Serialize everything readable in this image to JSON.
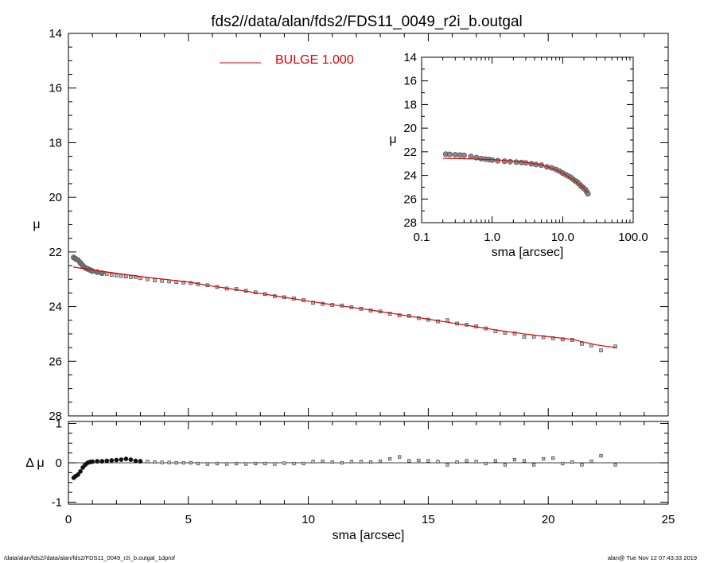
{
  "title": "fds2//data/alan/fds2/FDS11_0049_r2i_b.outgal",
  "footer_left": "/data/alan/fds2//data/alan/fds2/FDS11_0049_r2i_b.outgal_1dprof",
  "footer_right": "alan@  Tue Nov 12 07:43:33 2019",
  "colors": {
    "model": "#e00000",
    "data": "#555555",
    "axes": "#000000"
  },
  "chart_data": [
    {
      "panel": "main",
      "type": "scatter",
      "xlabel": "sma [arcsec]",
      "ylabel": "μ",
      "xlim": [
        0,
        25
      ],
      "ylim": [
        28,
        14
      ],
      "x_ticks": [
        0,
        5,
        10,
        15,
        20,
        25
      ],
      "y_ticks": [
        14,
        16,
        18,
        20,
        22,
        24,
        26,
        28
      ],
      "legend": {
        "label": "BULGE  1.000",
        "position": "top-center"
      },
      "series": [
        {
          "name": "BULGE  1.000",
          "kind": "line",
          "color": "#e00000",
          "x": [
            0.2,
            1,
            2,
            3,
            4,
            5,
            6,
            7,
            8,
            9,
            10,
            11,
            12,
            13,
            14,
            15,
            16,
            17,
            18,
            19,
            20,
            21,
            22,
            22.8
          ],
          "y": [
            22.55,
            22.66,
            22.78,
            22.9,
            23.0,
            23.1,
            23.25,
            23.38,
            23.52,
            23.66,
            23.8,
            23.93,
            24.05,
            24.18,
            24.32,
            24.46,
            24.6,
            24.74,
            24.88,
            25.0,
            25.1,
            25.2,
            25.4,
            25.5
          ]
        },
        {
          "kind": "points",
          "x": [
            0.22,
            0.3,
            0.4,
            0.5,
            0.6,
            0.7,
            0.8,
            0.9,
            1.0,
            1.2,
            1.4,
            1.6,
            1.8,
            2.0,
            2.2,
            2.4,
            2.6,
            2.8,
            3.0,
            3.3,
            3.6,
            3.9,
            4.2,
            4.5,
            4.8,
            5.1,
            5.4,
            5.8,
            6.2,
            6.6,
            7.0,
            7.4,
            7.8,
            8.2,
            8.6,
            9.0,
            9.4,
            9.8,
            10.2,
            10.6,
            11.0,
            11.4,
            11.8,
            12.2,
            12.6,
            13.0,
            13.4,
            13.8,
            14.2,
            14.6,
            15.0,
            15.4,
            15.8,
            16.2,
            16.6,
            17.0,
            17.4,
            17.8,
            18.2,
            18.6,
            19.0,
            19.4,
            19.8,
            20.2,
            20.6,
            21.0,
            21.4,
            21.8,
            22.2,
            22.8
          ],
          "y": [
            22.2,
            22.25,
            22.3,
            22.4,
            22.5,
            22.58,
            22.62,
            22.66,
            22.7,
            22.74,
            22.78,
            22.8,
            22.84,
            22.86,
            22.88,
            22.9,
            22.92,
            22.92,
            22.96,
            23.0,
            23.04,
            23.06,
            23.08,
            23.1,
            23.12,
            23.14,
            23.18,
            23.22,
            23.28,
            23.34,
            23.36,
            23.42,
            23.48,
            23.54,
            23.62,
            23.66,
            23.7,
            23.76,
            23.86,
            23.9,
            23.94,
            23.96,
            24.02,
            24.08,
            24.14,
            24.18,
            24.26,
            24.32,
            24.34,
            24.42,
            24.48,
            24.54,
            24.5,
            24.62,
            24.66,
            24.72,
            24.8,
            24.9,
            24.96,
            24.98,
            25.1,
            25.1,
            25.12,
            25.16,
            25.2,
            25.22,
            25.36,
            25.42,
            25.6,
            25.46
          ]
        }
      ]
    },
    {
      "panel": "inset",
      "type": "scatter",
      "xlabel": "sma [arcsec]",
      "ylabel": "μ",
      "xscale": "log",
      "xlim": [
        0.1,
        100
      ],
      "ylim": [
        28,
        14
      ],
      "x_tick_labels": [
        "0.1",
        "1.0",
        "10.0",
        "100.0"
      ],
      "x_tick_values": [
        0.1,
        1,
        10,
        100
      ],
      "y_ticks": [
        14,
        16,
        18,
        20,
        22,
        24,
        26,
        28
      ],
      "series": [
        {
          "kind": "line",
          "color": "#e00000",
          "x": [
            0.2,
            0.5,
            1,
            2,
            3,
            5,
            8,
            10,
            15,
            20,
            22.8
          ],
          "y": [
            22.55,
            22.6,
            22.66,
            22.78,
            22.9,
            23.1,
            23.52,
            23.8,
            24.46,
            25.1,
            25.5
          ]
        },
        {
          "kind": "points",
          "x": [
            0.22,
            0.25,
            0.3,
            0.35,
            0.4,
            0.5,
            0.6,
            0.7,
            0.8,
            0.9,
            1.0,
            1.2,
            1.5,
            1.8,
            2.2,
            2.6,
            3.0,
            3.6,
            4.2,
            5.0,
            6.0,
            7.0,
            8.0,
            9.0,
            10.0,
            11.0,
            12.0,
            13.0,
            14.0,
            15.0,
            16.0,
            17.0,
            18.0,
            19.0,
            20.0,
            21.0,
            22.0,
            22.8
          ],
          "y": [
            22.2,
            22.22,
            22.25,
            22.28,
            22.3,
            22.4,
            22.5,
            22.58,
            22.62,
            22.66,
            22.7,
            22.76,
            22.8,
            22.84,
            22.88,
            22.91,
            22.94,
            23.02,
            23.08,
            23.14,
            23.28,
            23.36,
            23.5,
            23.64,
            23.8,
            23.94,
            24.05,
            24.16,
            24.32,
            24.46,
            24.56,
            24.7,
            24.86,
            24.98,
            25.1,
            25.2,
            25.4,
            25.55
          ]
        }
      ]
    },
    {
      "panel": "residual",
      "type": "scatter",
      "xlabel": "sma [arcsec]",
      "ylabel": "Δ μ",
      "xlim": [
        0,
        25
      ],
      "ylim": [
        -1,
        1
      ],
      "x_ticks": [
        0,
        5,
        10,
        15,
        20,
        25
      ],
      "y_ticks": [
        -1,
        0,
        1
      ],
      "series": [
        {
          "kind": "points",
          "x": [
            0.22,
            0.3,
            0.4,
            0.5,
            0.6,
            0.7,
            0.8,
            0.9,
            1.0,
            1.2,
            1.4,
            1.6,
            1.8,
            2.0,
            2.2,
            2.4,
            2.6,
            2.8,
            3.0,
            3.3,
            3.6,
            3.9,
            4.2,
            4.5,
            4.8,
            5.1,
            5.4,
            5.8,
            6.2,
            6.6,
            7.0,
            7.4,
            7.8,
            8.2,
            8.6,
            9.0,
            9.4,
            9.8,
            10.2,
            10.6,
            11.0,
            11.4,
            11.8,
            12.2,
            12.6,
            13.0,
            13.4,
            13.8,
            14.2,
            14.6,
            15.0,
            15.4,
            15.8,
            16.2,
            16.6,
            17.0,
            17.4,
            17.8,
            18.2,
            18.6,
            19.0,
            19.4,
            19.8,
            20.2,
            20.6,
            21.0,
            21.4,
            21.8,
            22.2,
            22.8
          ],
          "y": [
            -0.38,
            -0.34,
            -0.3,
            -0.22,
            -0.12,
            -0.05,
            0.0,
            0.02,
            0.03,
            0.04,
            0.04,
            0.05,
            0.06,
            0.07,
            0.08,
            0.1,
            0.08,
            0.05,
            0.04,
            0.03,
            0.02,
            0.01,
            0.01,
            0.0,
            0.0,
            0.0,
            -0.02,
            -0.03,
            -0.02,
            -0.03,
            -0.02,
            -0.03,
            -0.02,
            -0.02,
            -0.03,
            -0.01,
            -0.02,
            -0.02,
            0.03,
            0.04,
            0.02,
            0.0,
            0.03,
            0.03,
            0.02,
            0.04,
            0.1,
            0.15,
            0.05,
            0.06,
            0.05,
            0.03,
            -0.05,
            0.02,
            0.05,
            0.03,
            -0.02,
            0.05,
            -0.05,
            0.08,
            0.05,
            -0.05,
            0.1,
            0.12,
            -0.02,
            0.02,
            -0.05,
            0.04,
            0.18,
            -0.05
          ]
        }
      ]
    }
  ]
}
